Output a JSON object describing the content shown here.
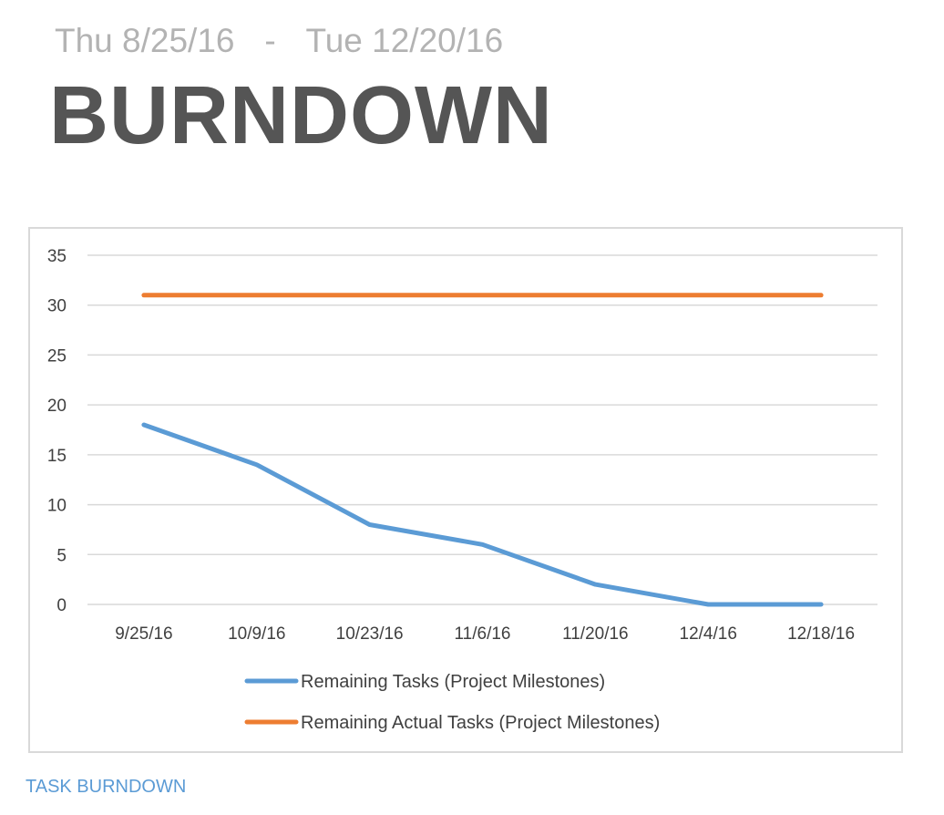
{
  "header": {
    "start_date": "Thu 8/25/16",
    "separator": "-",
    "end_date": "Tue 12/20/16",
    "title": "BURNDOWN"
  },
  "footer": {
    "caption": "TASK BURNDOWN"
  },
  "chart_data": {
    "type": "line",
    "categories": [
      "9/25/16",
      "10/9/16",
      "10/23/16",
      "11/6/16",
      "11/20/16",
      "12/4/16",
      "12/18/16"
    ],
    "series": [
      {
        "name": "Remaining Tasks (Project Milestones)",
        "values": [
          18,
          14,
          8,
          6,
          2,
          0,
          0
        ],
        "color": "#5b9bd5"
      },
      {
        "name": "Remaining Actual Tasks (Project Milestones)",
        "values": [
          31,
          31,
          31,
          31,
          31,
          31,
          31
        ],
        "color": "#ed7d31"
      }
    ],
    "yticks": [
      "0",
      "5",
      "10",
      "15",
      "20",
      "25",
      "30",
      "35"
    ],
    "ylim": [
      0,
      35
    ],
    "grid": true,
    "legend": "bottom",
    "gridline_color": "#d9d9d9",
    "title": "",
    "xlabel": "",
    "ylabel": ""
  }
}
